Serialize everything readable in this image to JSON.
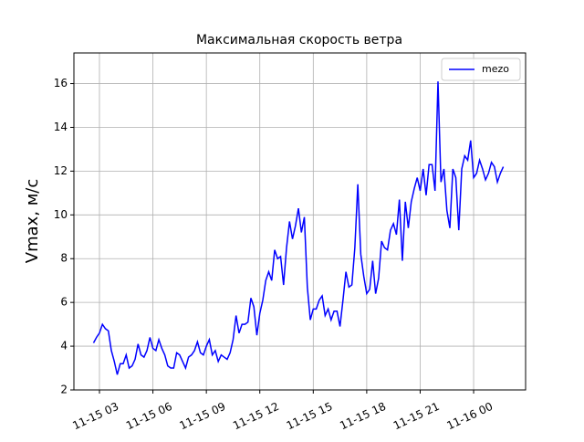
{
  "chart_data": {
    "type": "line",
    "title": "Максимальная скорость ветра",
    "ylabel": "Vmax, м/с",
    "x": [
      "11-15 02:40",
      "11-15 02:50",
      "11-15 03:00",
      "11-15 03:10",
      "11-15 03:20",
      "11-15 03:30",
      "11-15 03:40",
      "11-15 03:50",
      "11-15 04:00",
      "11-15 04:10",
      "11-15 04:20",
      "11-15 04:30",
      "11-15 04:40",
      "11-15 04:50",
      "11-15 05:00",
      "11-15 05:10",
      "11-15 05:20",
      "11-15 05:30",
      "11-15 05:40",
      "11-15 05:50",
      "11-15 06:00",
      "11-15 06:10",
      "11-15 06:20",
      "11-15 06:30",
      "11-15 06:40",
      "11-15 06:50",
      "11-15 07:00",
      "11-15 07:10",
      "11-15 07:20",
      "11-15 07:30",
      "11-15 07:40",
      "11-15 07:50",
      "11-15 08:00",
      "11-15 08:10",
      "11-15 08:20",
      "11-15 08:30",
      "11-15 08:40",
      "11-15 08:50",
      "11-15 09:00",
      "11-15 09:10",
      "11-15 09:20",
      "11-15 09:30",
      "11-15 09:40",
      "11-15 09:50",
      "11-15 10:00",
      "11-15 10:10",
      "11-15 10:20",
      "11-15 10:30",
      "11-15 10:40",
      "11-15 10:50",
      "11-15 11:00",
      "11-15 11:10",
      "11-15 11:20",
      "11-15 11:30",
      "11-15 11:40",
      "11-15 11:50",
      "11-15 12:00",
      "11-15 12:10",
      "11-15 12:20",
      "11-15 12:30",
      "11-15 12:40",
      "11-15 12:50",
      "11-15 13:00",
      "11-15 13:10",
      "11-15 13:20",
      "11-15 13:30",
      "11-15 13:40",
      "11-15 13:50",
      "11-15 14:00",
      "11-15 14:10",
      "11-15 14:20",
      "11-15 14:30",
      "11-15 14:40",
      "11-15 14:50",
      "11-15 15:00",
      "11-15 15:10",
      "11-15 15:20",
      "11-15 15:30",
      "11-15 15:40",
      "11-15 15:50",
      "11-15 16:00",
      "11-15 16:10",
      "11-15 16:20",
      "11-15 16:30",
      "11-15 16:40",
      "11-15 16:50",
      "11-15 17:00",
      "11-15 17:10",
      "11-15 17:20",
      "11-15 17:30",
      "11-15 17:40",
      "11-15 17:50",
      "11-15 18:00",
      "11-15 18:10",
      "11-15 18:20",
      "11-15 18:30",
      "11-15 18:40",
      "11-15 18:50",
      "11-15 19:00",
      "11-15 19:10",
      "11-15 19:20",
      "11-15 19:30",
      "11-15 19:40",
      "11-15 19:50",
      "11-15 20:00",
      "11-15 20:10",
      "11-15 20:20",
      "11-15 20:30",
      "11-15 20:40",
      "11-15 20:50",
      "11-15 21:00",
      "11-15 21:10",
      "11-15 21:20",
      "11-15 21:30",
      "11-15 21:40",
      "11-15 21:50",
      "11-15 22:00",
      "11-15 22:10",
      "11-15 22:20",
      "11-15 22:30",
      "11-15 22:40",
      "11-15 22:50",
      "11-15 23:00",
      "11-15 23:10",
      "11-15 23:20",
      "11-15 23:30",
      "11-15 23:40",
      "11-15 23:50",
      "11-16 00:00",
      "11-16 00:10",
      "11-16 00:20",
      "11-16 00:30",
      "11-16 00:40",
      "11-16 00:50",
      "11-16 01:00",
      "11-16 01:10",
      "11-16 01:20",
      "11-16 01:30",
      "11-16 01:40"
    ],
    "series": [
      {
        "name": "mezo",
        "color": "#0000ff",
        "values": [
          4.15,
          4.4,
          4.6,
          5.0,
          4.8,
          4.7,
          3.8,
          3.3,
          2.7,
          3.2,
          3.2,
          3.6,
          3.0,
          3.1,
          3.4,
          4.1,
          3.6,
          3.5,
          3.8,
          4.4,
          3.9,
          3.8,
          4.3,
          3.9,
          3.6,
          3.1,
          3.0,
          3.0,
          3.7,
          3.6,
          3.3,
          3.0,
          3.5,
          3.6,
          3.8,
          4.2,
          3.7,
          3.6,
          4.0,
          4.3,
          3.6,
          3.8,
          3.3,
          3.6,
          3.5,
          3.4,
          3.7,
          4.3,
          5.4,
          4.6,
          5.0,
          5.0,
          5.1,
          6.2,
          5.8,
          4.5,
          5.5,
          6.1,
          7.0,
          7.4,
          7.0,
          8.4,
          8.0,
          8.1,
          6.8,
          8.5,
          9.7,
          8.9,
          9.5,
          10.3,
          9.2,
          9.9,
          6.7,
          5.2,
          5.7,
          5.7,
          6.1,
          6.3,
          5.4,
          5.7,
          5.2,
          5.6,
          5.6,
          4.9,
          6.1,
          7.4,
          6.7,
          6.8,
          8.5,
          11.4,
          8.2,
          7.2,
          6.4,
          6.6,
          7.9,
          6.4,
          7.1,
          8.8,
          8.5,
          8.4,
          9.3,
          9.6,
          9.1,
          10.7,
          7.9,
          10.6,
          9.4,
          10.6,
          11.2,
          11.7,
          11.1,
          12.1,
          10.9,
          12.3,
          12.3,
          11.1,
          16.1,
          11.5,
          12.1,
          10.2,
          9.4,
          12.1,
          11.7,
          9.3,
          12.1,
          12.7,
          12.5,
          13.4,
          11.7,
          11.9,
          12.5,
          12.1,
          11.6,
          11.9,
          12.4,
          12.2,
          11.5,
          11.9,
          12.2
        ]
      }
    ],
    "xlim": [
      "11-15 01:34",
      "11-16 02:55"
    ],
    "xticks": [
      {
        "value": "11-15 03:00",
        "label": "11-15 03"
      },
      {
        "value": "11-15 06:00",
        "label": "11-15 06"
      },
      {
        "value": "11-15 09:00",
        "label": "11-15 09"
      },
      {
        "value": "11-15 12:00",
        "label": "11-15 12"
      },
      {
        "value": "11-15 15:00",
        "label": "11-15 15"
      },
      {
        "value": "11-15 18:00",
        "label": "11-15 18"
      },
      {
        "value": "11-15 21:00",
        "label": "11-15 21"
      },
      {
        "value": "11-16 00:00",
        "label": "11-16 00"
      }
    ],
    "ylim": [
      2,
      17.4
    ],
    "yticks": [
      2,
      4,
      6,
      8,
      10,
      12,
      14,
      16
    ],
    "grid": true,
    "legend": "upper right"
  }
}
